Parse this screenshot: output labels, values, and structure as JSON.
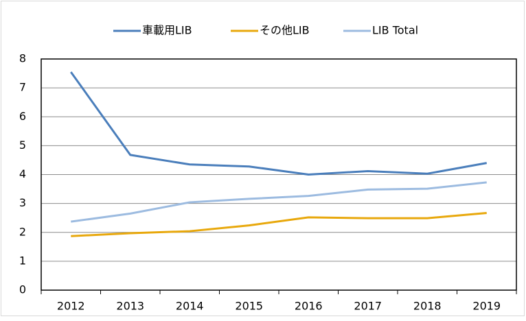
{
  "chart_data": {
    "type": "line",
    "categories": [
      "2012",
      "2013",
      "2014",
      "2015",
      "2016",
      "2017",
      "2018",
      "2019"
    ],
    "series": [
      {
        "name": "車載用LIB",
        "color": "#4a7ebb",
        "values": [
          7.55,
          4.68,
          4.35,
          4.28,
          4.0,
          4.12,
          4.03,
          4.4
        ]
      },
      {
        "name": "その他LIB",
        "color": "#e8a80c",
        "values": [
          1.87,
          1.97,
          2.04,
          2.24,
          2.52,
          2.49,
          2.49,
          2.67
        ]
      },
      {
        "name": "LIB Total",
        "color": "#9cbbe0",
        "values": [
          2.37,
          2.65,
          3.04,
          3.16,
          3.26,
          3.48,
          3.51,
          3.73
        ]
      }
    ],
    "ylim": [
      0,
      8
    ],
    "yticks": [
      0,
      1,
      2,
      3,
      4,
      5,
      6,
      7,
      8
    ],
    "grid": true,
    "legend": "top"
  }
}
